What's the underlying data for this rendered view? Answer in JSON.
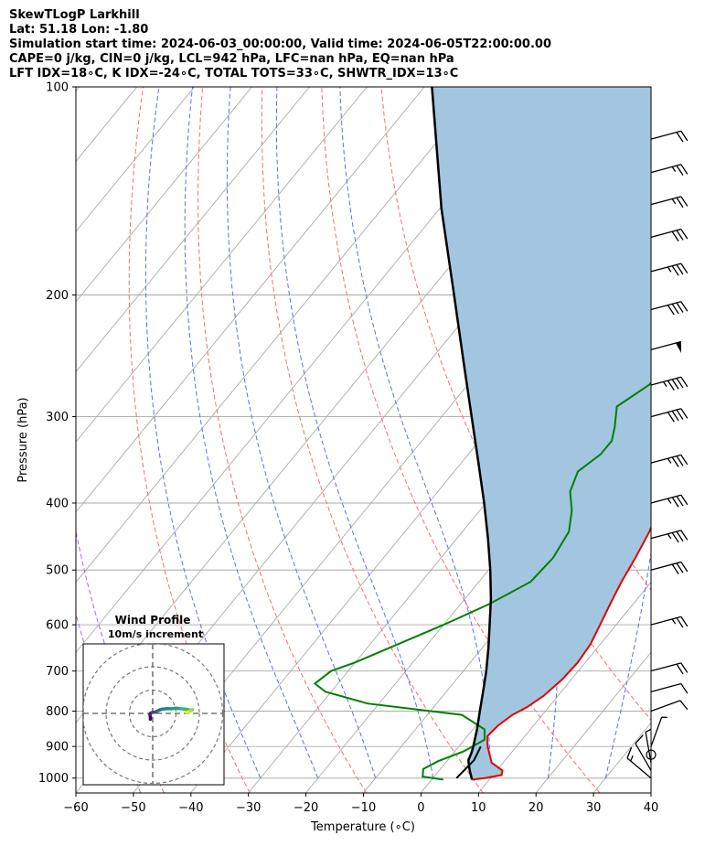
{
  "header": {
    "title": "SkewTLogP Larkhill",
    "location": "Lat: 51.18   Lon: -1.80",
    "times": "Simulation start time: 2024-06-03_00:00:00, Valid time: 2024-06-05T22:00:00.00",
    "indices1": "CAPE=0 j/kg, CIN=0 j/kg, LCL=942 hPa, LFC=nan hPa, EQ=nan hPa",
    "indices2": "LFT IDX=18∘C, K IDX=-24∘C, TOTAL TOTS=33∘C, SHWTR_IDX=13∘C"
  },
  "chart_data": {
    "type": "skew-t log-p",
    "xlabel": "Temperature (∘C)",
    "ylabel": "Pressure (hPa)",
    "xlim": [
      -60,
      40
    ],
    "ylim": [
      1050,
      100
    ],
    "x_ticks": [
      -60,
      -50,
      -40,
      -30,
      -20,
      -10,
      0,
      10,
      20,
      30,
      40
    ],
    "y_ticks": [
      100,
      200,
      300,
      400,
      500,
      600,
      700,
      800,
      900,
      1000
    ],
    "grid": true,
    "colors": {
      "temperature": "#e00000",
      "dewpoint": "#008000",
      "parcel": "#000000",
      "shade": "#a3c6e0",
      "dry_adiabat": "#f07070",
      "moist_adiabat": "#5a6ef0",
      "mixing_ratio": "#b06ad0"
    },
    "series": [
      {
        "name": "temperature",
        "points": [
          [
            1005,
            7
          ],
          [
            1000,
            9
          ],
          [
            990,
            11.5
          ],
          [
            975,
            11
          ],
          [
            950,
            8
          ],
          [
            900,
            5
          ],
          [
            870,
            3.5
          ],
          [
            840,
            3.8
          ],
          [
            810,
            4.8
          ],
          [
            790,
            6.2
          ],
          [
            760,
            7.5
          ],
          [
            720,
            8.4
          ],
          [
            680,
            8.7
          ],
          [
            640,
            8.3
          ],
          [
            600,
            7.2
          ],
          [
            560,
            6
          ],
          [
            520,
            4.8
          ],
          [
            480,
            3.8
          ],
          [
            440,
            2.5
          ],
          [
            400,
            0.5
          ],
          [
            370,
            -1.3
          ],
          [
            340,
            -3.3
          ],
          [
            315,
            -5.2
          ],
          [
            295,
            -6.6
          ],
          [
            280,
            -7
          ],
          [
            265,
            -7.7
          ],
          [
            250,
            -8.5
          ],
          [
            235,
            -9
          ],
          [
            220,
            -8.3
          ],
          [
            205,
            -6.5
          ],
          [
            190,
            -3.3
          ],
          [
            175,
            -1
          ],
          [
            160,
            1.2
          ],
          [
            140,
            4.5
          ],
          [
            125,
            6
          ],
          [
            112,
            7.5
          ],
          [
            100,
            10
          ]
        ]
      },
      {
        "name": "dewpoint",
        "points": [
          [
            1005,
            2
          ],
          [
            995,
            -2
          ],
          [
            970,
            -3
          ],
          [
            945,
            -1.5
          ],
          [
            915,
            1.5
          ],
          [
            880,
            3.5
          ],
          [
            850,
            2
          ],
          [
            810,
            -4
          ],
          [
            780,
            -22
          ],
          [
            750,
            -31
          ],
          [
            730,
            -34
          ],
          [
            700,
            -33
          ],
          [
            680,
            -30
          ],
          [
            600,
            -20
          ],
          [
            560,
            -15
          ],
          [
            520,
            -11
          ],
          [
            480,
            -10.5
          ],
          [
            440,
            -11.5
          ],
          [
            410,
            -14
          ],
          [
            385,
            -17
          ],
          [
            360,
            -18.5
          ],
          [
            340,
            -17
          ],
          [
            325,
            -17
          ],
          [
            310,
            -18.5
          ],
          [
            290,
            -21
          ],
          [
            270,
            -18.5
          ],
          [
            250,
            -18
          ],
          [
            230,
            -18.5
          ],
          [
            210,
            -18
          ],
          [
            195,
            -17.5
          ],
          [
            180,
            -17.5
          ],
          [
            165,
            -19.5
          ],
          [
            150,
            -22
          ],
          [
            140,
            -25
          ],
          [
            125,
            -24
          ],
          [
            112,
            -23.5
          ],
          [
            100,
            -23
          ]
        ]
      },
      {
        "name": "parcel",
        "points": [
          [
            1005,
            7
          ],
          [
            975,
            5.3
          ],
          [
            950,
            4
          ],
          [
            942,
            3.6
          ],
          [
            920,
            3.1
          ],
          [
            900,
            2.5
          ],
          [
            850,
            0.7
          ],
          [
            800,
            -1.4
          ],
          [
            750,
            -3.6
          ],
          [
            700,
            -6
          ],
          [
            650,
            -8.8
          ],
          [
            600,
            -12
          ],
          [
            550,
            -15.5
          ],
          [
            500,
            -19.7
          ],
          [
            450,
            -24.6
          ],
          [
            400,
            -30.3
          ],
          [
            350,
            -37
          ],
          [
            300,
            -44.8
          ],
          [
            250,
            -54
          ],
          [
            200,
            -65.2
          ],
          [
            150,
            -79.7
          ],
          [
            100,
            -98.7
          ]
        ]
      },
      {
        "name": "lcl-marker",
        "points": [
          [
            1000,
            4.1
          ],
          [
            942,
            4.6
          ],
          [
            900,
            3.8
          ]
        ]
      }
    ],
    "dry_adiabats_theta_K": [
      240,
      260,
      280,
      300,
      320,
      340,
      360,
      380,
      400,
      420,
      440
    ],
    "moist_adiabats_Tsfc_C": [
      -30,
      -20,
      -10,
      0,
      10,
      20,
      30,
      40
    ],
    "mixing_ratio_Tsfc_C": [
      -42,
      -38
    ],
    "wind_barbs": [
      {
        "p": 1000,
        "speed_kt": 15,
        "dir": 130
      },
      {
        "p": 975,
        "speed_kt": 10,
        "dir": 150
      },
      {
        "p": 950,
        "speed_kt": 5,
        "dir": 170
      },
      {
        "p": 925,
        "speed_kt": 0,
        "dir": 0
      },
      {
        "p": 900,
        "speed_kt": 5,
        "dir": 200
      },
      {
        "p": 800,
        "speed_kt": 10,
        "dir": 250
      },
      {
        "p": 750,
        "speed_kt": 10,
        "dir": 255
      },
      {
        "p": 700,
        "speed_kt": 20,
        "dir": 255
      },
      {
        "p": 600,
        "speed_kt": 25,
        "dir": 255
      },
      {
        "p": 500,
        "speed_kt": 30,
        "dir": 255
      },
      {
        "p": 450,
        "speed_kt": 35,
        "dir": 255
      },
      {
        "p": 400,
        "speed_kt": 35,
        "dir": 255
      },
      {
        "p": 350,
        "speed_kt": 35,
        "dir": 255
      },
      {
        "p": 300,
        "speed_kt": 40,
        "dir": 255
      },
      {
        "p": 270,
        "speed_kt": 45,
        "dir": 255
      },
      {
        "p": 240,
        "speed_kt": 50,
        "dir": 255
      },
      {
        "p": 210,
        "speed_kt": 40,
        "dir": 255
      },
      {
        "p": 185,
        "speed_kt": 35,
        "dir": 255
      },
      {
        "p": 165,
        "speed_kt": 30,
        "dir": 255
      },
      {
        "p": 148,
        "speed_kt": 25,
        "dir": 255
      },
      {
        "p": 133,
        "speed_kt": 25,
        "dir": 255
      },
      {
        "p": 119,
        "speed_kt": 20,
        "dir": 255
      }
    ],
    "hodograph": {
      "title": "Wind Profile",
      "subtitle": "10m/s increment",
      "ring_step_ms": 10,
      "rings": 3,
      "points": [
        [
          -1,
          -2.5
        ],
        [
          -1,
          -1.5
        ],
        [
          -1.2,
          -0.5
        ],
        [
          -1,
          0
        ],
        [
          0,
          0.5
        ],
        [
          1,
          0.5
        ],
        [
          2,
          1
        ],
        [
          3,
          1.5
        ],
        [
          4,
          1.8
        ],
        [
          6,
          2
        ],
        [
          8,
          2
        ],
        [
          10,
          2.2
        ],
        [
          12,
          2
        ],
        [
          14,
          1.8
        ],
        [
          16,
          1.5
        ],
        [
          17,
          1.5
        ],
        [
          16.5,
          1.2
        ],
        [
          16,
          1
        ],
        [
          15,
          0.5
        ],
        [
          14.5,
          0.5
        ]
      ]
    }
  }
}
